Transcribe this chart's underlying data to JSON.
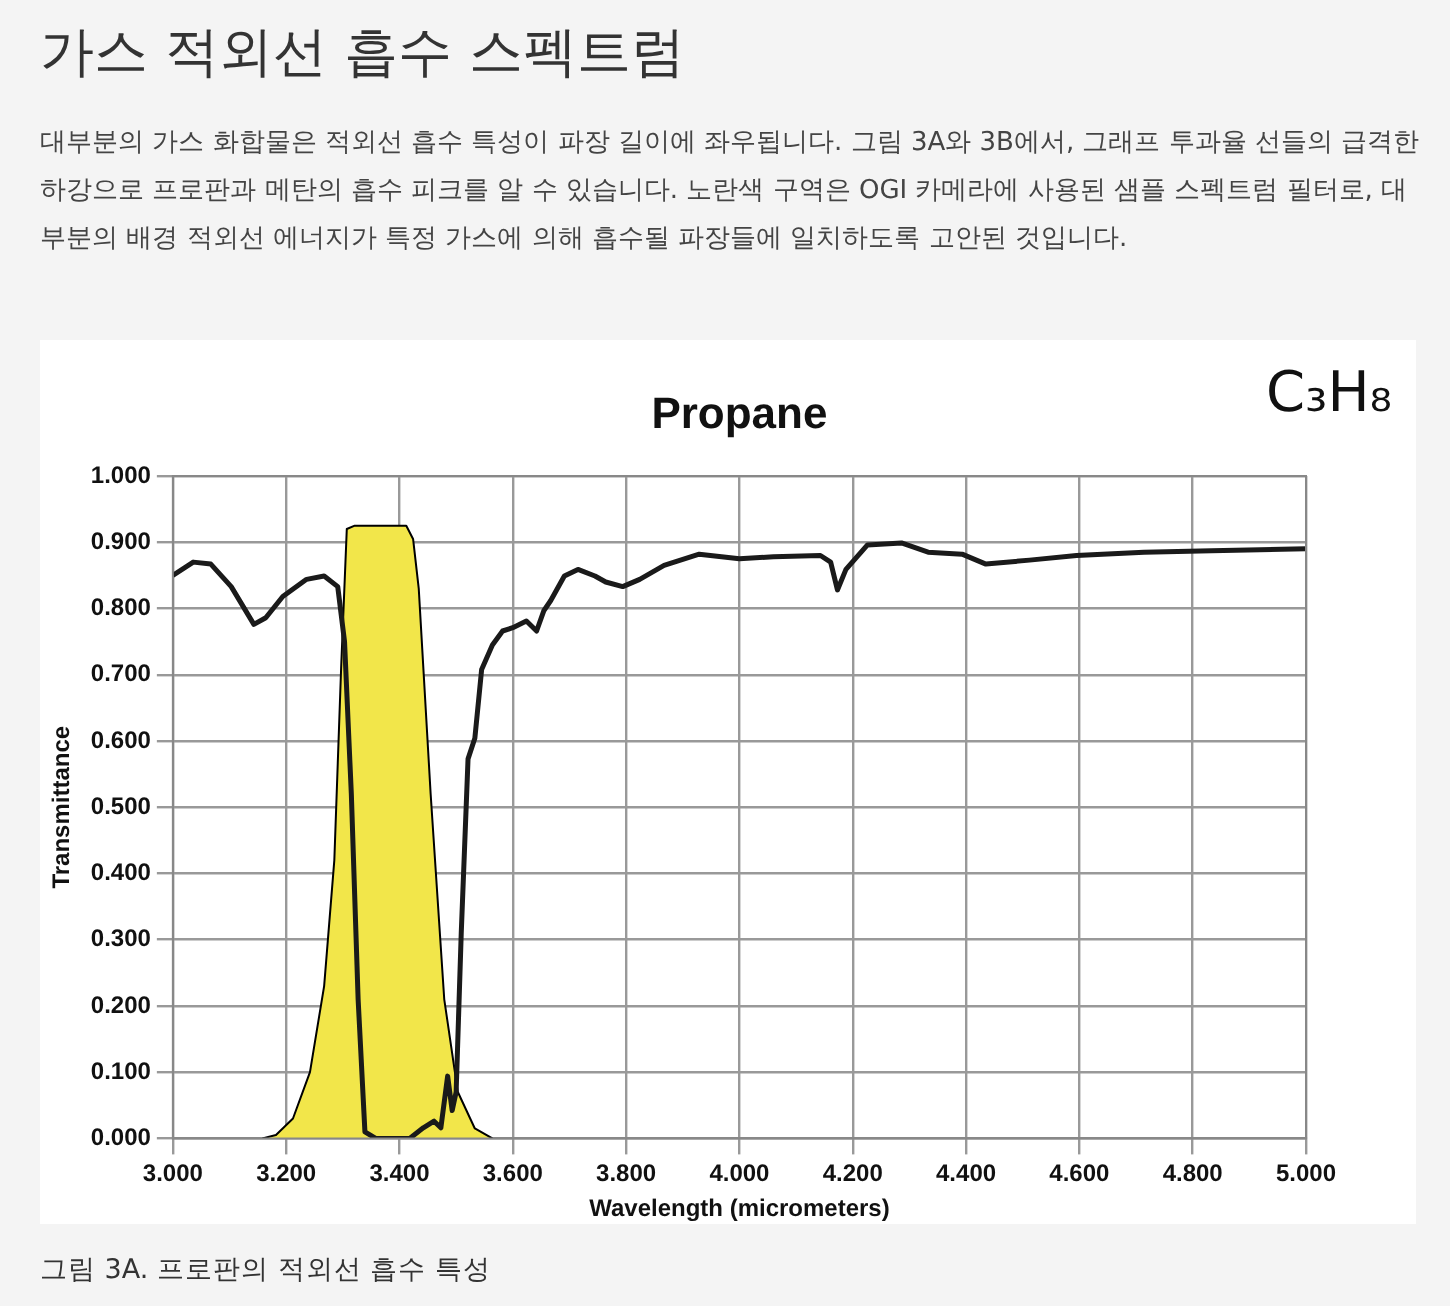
{
  "chart_data": {
    "type": "line",
    "title": "가스 적외선 흡수 스펙트럼",
    "subtitle": "대부분의 가스 화합물은 적외선 흡수 특성이 파장 길이에 좌우됩니다. 그림 3A와 3B에서, 그래프 투과율 선들의 급격한 하강으로 프로판과 메탄의 흡수 피크를 알 수 있습니다. 노란색 구역은 OGI 카메라에 사용된 샘플 스펙트럼 필터로, 대부분의 배경 적외선 에너지가 특정 가스에 의해 흡수될 파장들에 일치하도록 고안된 것입니다.",
    "xlabel": "Wavelength (micrometers)",
    "ylabel": "Transmittance",
    "annotations": [
      "Propane",
      "C₃H₈",
      "그림 3A. 프로판의 적외선 흡수 특성"
    ],
    "series": [
      {
        "type": "area",
        "color": "#f2e64a",
        "x": [
          3.158,
          3.182,
          3.212,
          3.242,
          3.267,
          3.285,
          3.297,
          3.307,
          3.321,
          3.412,
          3.424,
          3.434,
          3.455,
          3.479,
          3.503,
          3.533,
          3.564
        ],
        "values": [
          0,
          0.005,
          0.03,
          0.1,
          0.23,
          0.42,
          0.71,
          0.92,
          0.925,
          0.925,
          0.905,
          0.83,
          0.52,
          0.21,
          0.07,
          0.015,
          0
        ]
      },
      {
        "type": "line",
        "color": "#1a1a1a",
        "x": [
          3.0,
          3.036,
          3.067,
          3.103,
          3.143,
          3.164,
          3.194,
          3.236,
          3.267,
          3.291,
          3.303,
          3.315,
          3.327,
          3.339,
          3.358,
          3.418,
          3.442,
          3.461,
          3.473,
          3.485,
          3.493,
          3.5,
          3.509,
          3.521,
          3.533,
          3.545,
          3.564,
          3.582,
          3.6,
          3.624,
          3.642,
          3.655,
          3.667,
          3.691,
          3.715,
          3.745,
          3.764,
          3.794,
          3.824,
          3.867,
          3.929,
          4.0,
          4.06,
          4.143,
          4.161,
          4.173,
          4.188,
          4.226,
          4.286,
          4.333,
          4.393,
          4.435,
          4.512,
          4.595,
          4.714,
          4.833,
          5.0
        ],
        "values": [
          0.85,
          0.87,
          0.867,
          0.833,
          0.776,
          0.786,
          0.818,
          0.844,
          0.849,
          0.833,
          0.75,
          0.52,
          0.21,
          0.01,
          0,
          0,
          0.016,
          0.026,
          0.016,
          0.094,
          0.042,
          0.07,
          0.31,
          0.573,
          0.604,
          0.708,
          0.745,
          0.766,
          0.771,
          0.781,
          0.766,
          0.797,
          0.812,
          0.849,
          0.859,
          0.849,
          0.84,
          0.833,
          0.844,
          0.865,
          0.882,
          0.875,
          0.878,
          0.88,
          0.87,
          0.828,
          0.859,
          0.896,
          0.899,
          0.885,
          0.882,
          0.867,
          0.873,
          0.88,
          0.885,
          0.887,
          0.89
        ]
      }
    ],
    "xlim": [
      3,
      5
    ],
    "xticks": [
      {
        "value": 3,
        "label": "3.000"
      },
      {
        "value": 3.2,
        "label": "3.200"
      },
      {
        "value": 3.4,
        "label": "3.400"
      },
      {
        "value": 3.6,
        "label": "3.600"
      },
      {
        "value": 3.8,
        "label": "3.800"
      },
      {
        "value": 4,
        "label": "4.000"
      },
      {
        "value": 4.2,
        "label": "4.200"
      },
      {
        "value": 4.4,
        "label": "4.400"
      },
      {
        "value": 4.6,
        "label": "4.600"
      },
      {
        "value": 4.8,
        "label": "4.800"
      },
      {
        "value": 5,
        "label": "5.000"
      }
    ],
    "ylim": [
      0,
      1
    ],
    "yticks": [
      {
        "value": 0,
        "label": "0.000"
      },
      {
        "value": 0.1,
        "label": "0.100"
      },
      {
        "value": 0.2,
        "label": "0.200"
      },
      {
        "value": 0.3,
        "label": "0.300"
      },
      {
        "value": 0.4,
        "label": "0.400"
      },
      {
        "value": 0.5,
        "label": "0.500"
      },
      {
        "value": 0.6,
        "label": "0.600"
      },
      {
        "value": 0.7,
        "label": "0.700"
      },
      {
        "value": 0.8,
        "label": "0.800"
      },
      {
        "value": 0.9,
        "label": "0.900"
      },
      {
        "value": 1,
        "label": "1.000"
      }
    ],
    "grid": true,
    "legend": false,
    "marker": "none",
    "line_style": "solid"
  }
}
